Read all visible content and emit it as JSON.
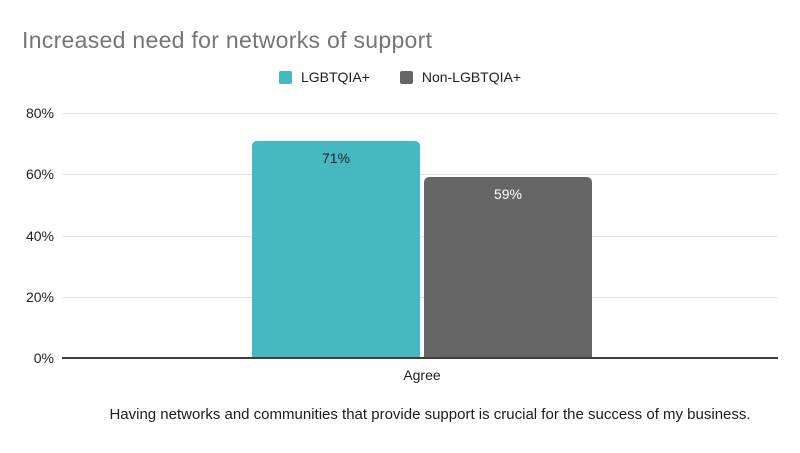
{
  "title": "Increased need for networks of support",
  "legend": [
    {
      "label": "LGBTQIA+",
      "color": "#45b8c2"
    },
    {
      "label": "Non-LGBTQIA+",
      "color": "#666666"
    }
  ],
  "caption": "Having networks and communities that provide support is crucial for the success of my business.",
  "colors": {
    "title_text": "#757575",
    "axis_text": "#212121",
    "gridline": "#e2e2e2",
    "axis_line": "#3f3f3f",
    "background": "#ffffff"
  },
  "chart_data": {
    "type": "bar",
    "title": "Increased need for networks of support",
    "categories": [
      "Agree"
    ],
    "series": [
      {
        "name": "LGBTQIA+",
        "values": [
          71
        ],
        "color": "#45b8c2",
        "label_color": "#212121"
      },
      {
        "name": "Non-LGBTQIA+",
        "values": [
          59
        ],
        "color": "#666666",
        "label_color": "#ffffff"
      }
    ],
    "value_labels": [
      "71%",
      "59%"
    ],
    "xlabel": "",
    "ylabel": "",
    "ylim": [
      0,
      80
    ],
    "yticks": [
      "0%",
      "20%",
      "40%",
      "60%",
      "80%"
    ],
    "grid": true,
    "legend_position": "top"
  }
}
